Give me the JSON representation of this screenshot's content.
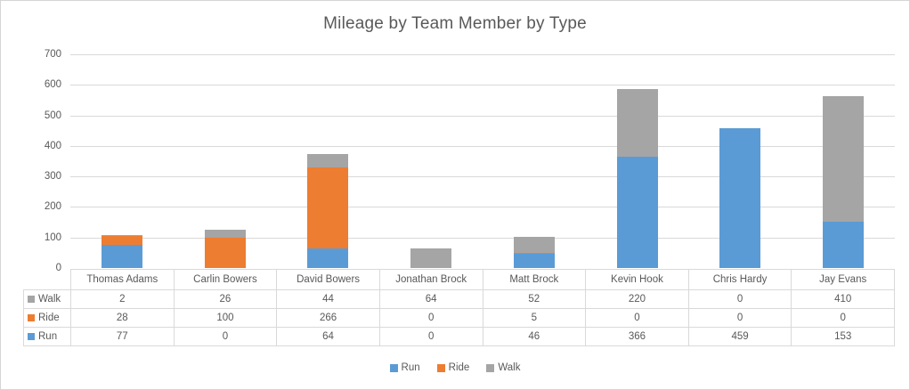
{
  "chart": {
    "title": "Mileage by Team Member by Type"
  },
  "colors": {
    "run": "#5B9BD5",
    "ride": "#ED7D31",
    "walk": "#A5A5A5",
    "gridline": "#D9D9D9",
    "text": "#595959"
  },
  "chart_data": {
    "type": "bar",
    "stacked": true,
    "title": "Mileage by Team Member by Type",
    "xlabel": "",
    "ylabel": "",
    "ylim": [
      0,
      700
    ],
    "ytick_step": 100,
    "yticks": [
      0,
      100,
      200,
      300,
      400,
      500,
      600,
      700
    ],
    "grid": true,
    "legend_position": "bottom",
    "categories": [
      "Thomas Adams",
      "Carlin Bowers",
      "David Bowers",
      "Jonathan Brock",
      "Matt Brock",
      "Kevin Hook",
      "Chris Hardy",
      "Jay Evans"
    ],
    "series": [
      {
        "name": "Run",
        "color": "#5B9BD5",
        "values": [
          77,
          0,
          64,
          0,
          46,
          366,
          459,
          153
        ]
      },
      {
        "name": "Ride",
        "color": "#ED7D31",
        "values": [
          28,
          100,
          266,
          0,
          5,
          0,
          0,
          0
        ]
      },
      {
        "name": "Walk",
        "color": "#A5A5A5",
        "values": [
          2,
          26,
          44,
          64,
          52,
          220,
          0,
          410
        ]
      }
    ],
    "legend_order": [
      "Run",
      "Ride",
      "Walk"
    ],
    "table_row_order": [
      "Walk",
      "Ride",
      "Run"
    ]
  }
}
